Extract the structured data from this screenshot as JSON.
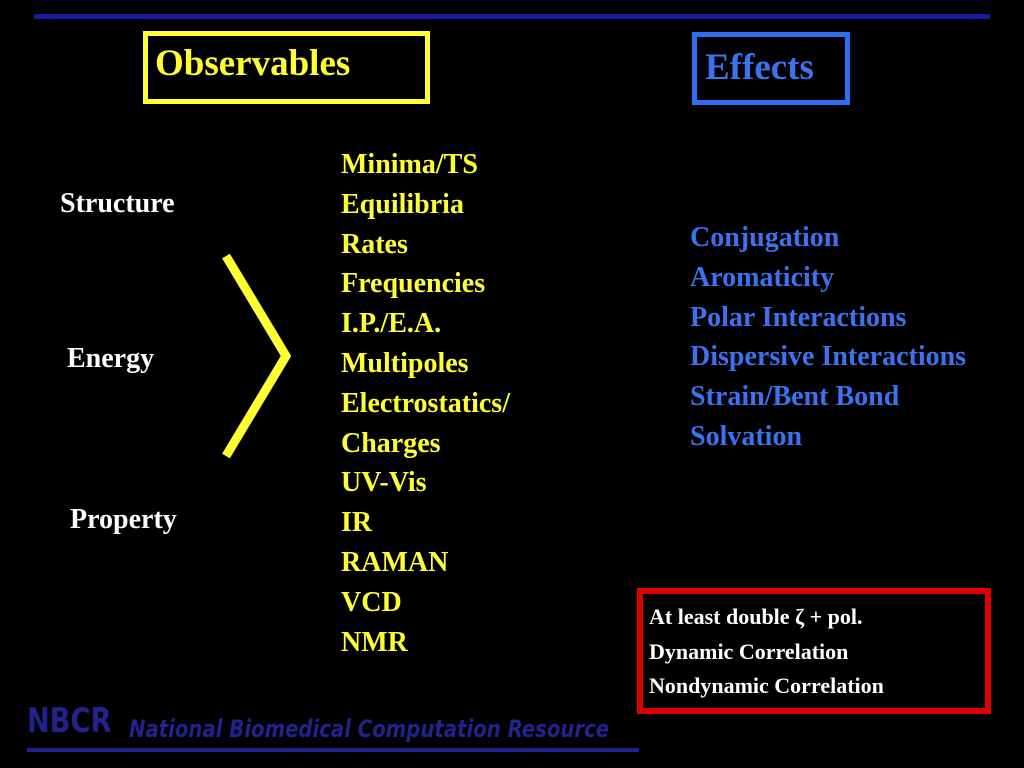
{
  "headings": {
    "observables": "Observables",
    "effects": "Effects"
  },
  "categories": [
    "Structure",
    "Energy",
    "Property"
  ],
  "observables_items": [
    "Minima/TS",
    "Equilibria",
    "Rates",
    "Frequencies",
    "I.P./E.A.",
    "Multipoles",
    "Electrostatics/",
    "Charges",
    "UV-Vis",
    "IR",
    "RAMAN",
    "VCD",
    "NMR"
  ],
  "effects_items": [
    "Conjugation",
    "Aromaticity",
    "Polar Interactions",
    "Dispersive Interactions",
    "Strain/Bent Bond",
    "Solvation"
  ],
  "requirements": [
    "At least double ζ  + pol.",
    "Dynamic Correlation",
    "Nondynamic Correlation"
  ],
  "footer": {
    "logo": "NBCR",
    "name": "National Biomedical Computation Resource"
  },
  "colors": {
    "background": "#000000",
    "observables_yellow": "#ffff33",
    "effects_blue": "#3a72f0",
    "requirements_red": "#dd0000",
    "footer_navy": "#22228c",
    "category_white": "#ffffff"
  },
  "icons": {
    "bracket": "right-angle-bracket-icon"
  }
}
